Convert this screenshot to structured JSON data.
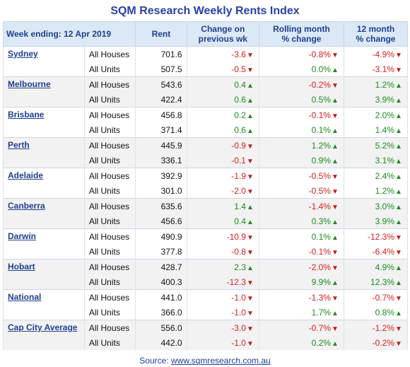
{
  "title": "SQM Research Weekly Rents Index",
  "header": {
    "week": "Week ending: 12 Apr 2019",
    "rent": "Rent",
    "change_wk_1": "Change on",
    "change_wk_2": "previous wk",
    "rolling_1": "Rolling month",
    "rolling_2": "% change",
    "annual_1": "12 month",
    "annual_2": "% change"
  },
  "rows": [
    {
      "city": "Sydney",
      "type": "All Houses",
      "rent": "701.6",
      "wk": "-3.6",
      "mo": "-0.8%",
      "yr": "-4.9%"
    },
    {
      "city": "",
      "type": "All Units",
      "rent": "507.5",
      "wk": "-0.5",
      "mo": "0.0%",
      "yr": "-3.1%"
    },
    {
      "city": "Melbourne",
      "type": "All Houses",
      "rent": "543.6",
      "wk": "0.4",
      "mo": "-0.2%",
      "yr": "1.2%"
    },
    {
      "city": "",
      "type": "All Units",
      "rent": "422.4",
      "wk": "0.6",
      "mo": "0.5%",
      "yr": "3.9%"
    },
    {
      "city": "Brisbane",
      "type": "All Houses",
      "rent": "456.8",
      "wk": "0.2",
      "mo": "-0.1%",
      "yr": "2.0%"
    },
    {
      "city": "",
      "type": "All Units",
      "rent": "371.4",
      "wk": "0.6",
      "mo": "0.1%",
      "yr": "1.4%"
    },
    {
      "city": "Perth",
      "type": "All Houses",
      "rent": "445.9",
      "wk": "-0.9",
      "mo": "1.2%",
      "yr": "5.2%"
    },
    {
      "city": "",
      "type": "All Units",
      "rent": "336.1",
      "wk": "-0.1",
      "mo": "0.9%",
      "yr": "3.1%"
    },
    {
      "city": "Adelaide",
      "type": "All Houses",
      "rent": "392.9",
      "wk": "-1.9",
      "mo": "-0.5%",
      "yr": "2.4%"
    },
    {
      "city": "",
      "type": "All Units",
      "rent": "301.0",
      "wk": "-2.0",
      "mo": "-0.5%",
      "yr": "1.2%"
    },
    {
      "city": "Canberra",
      "type": "All Houses",
      "rent": "635.6",
      "wk": "1.4",
      "mo": "-1.4%",
      "yr": "3.0%"
    },
    {
      "city": "",
      "type": "All Units",
      "rent": "456.6",
      "wk": "0.4",
      "mo": "0.3%",
      "yr": "3.9%"
    },
    {
      "city": "Darwin",
      "type": "All Houses",
      "rent": "490.9",
      "wk": "-10.9",
      "mo": "0.1%",
      "yr": "-12.3%"
    },
    {
      "city": "",
      "type": "All Units",
      "rent": "377.8",
      "wk": "-0.8",
      "mo": "-0.1%",
      "yr": "-6.4%"
    },
    {
      "city": "Hobart",
      "type": "All Houses",
      "rent": "428.7",
      "wk": "2.3",
      "mo": "-2.0%",
      "yr": "4.9%"
    },
    {
      "city": "",
      "type": "All Units",
      "rent": "400.3",
      "wk": "-12.3",
      "mo": "9.9%",
      "yr": "12.3%"
    },
    {
      "city": "National",
      "type": "All Houses",
      "rent": "441.0",
      "wk": "-1.0",
      "mo": "-1.3%",
      "yr": "-0.7%"
    },
    {
      "city": "",
      "type": "All Units",
      "rent": "366.0",
      "wk": "-1.0",
      "mo": "1.7%",
      "yr": "0.8%"
    },
    {
      "city": "Cap City Average",
      "type": "All Houses",
      "rent": "556.0",
      "wk": "-3.0",
      "mo": "-0.7%",
      "yr": "-1.2%"
    },
    {
      "city": "",
      "type": "All Units",
      "rent": "442.0",
      "wk": "-1.0",
      "mo": "0.2%",
      "yr": "-0.2%"
    }
  ],
  "source_label": "Source:",
  "source_link": "www.sqmresearch.com.au",
  "colors": {
    "up": "#1e8a22",
    "down": "#c41818",
    "header_bg": "#dbe8f5",
    "accent": "#1f3f8f"
  }
}
